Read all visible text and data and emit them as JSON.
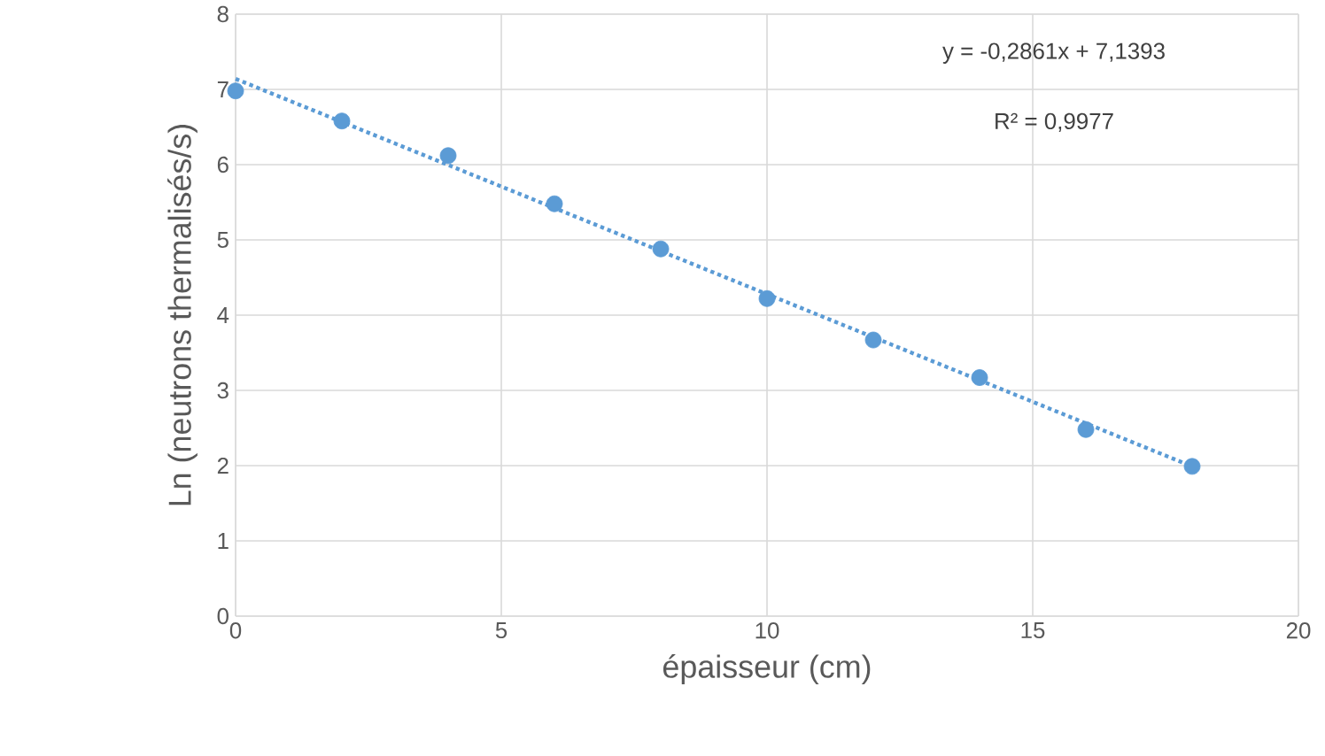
{
  "chart_data": {
    "type": "scatter",
    "xlabel": "épaisseur (cm)",
    "ylabel": "Ln (neutrons thermalisés/s)",
    "series": [
      {
        "marker": "circle",
        "color": "#5b9bd5",
        "x": [
          0,
          2,
          4,
          6,
          8,
          10,
          12,
          14,
          16,
          18
        ],
        "values": [
          6.98,
          6.58,
          6.12,
          5.48,
          4.88,
          4.22,
          3.67,
          3.17,
          2.48,
          1.99
        ]
      },
      {
        "type": "line",
        "marker": "none",
        "line_style": "dotted",
        "color": "#5b9bd5",
        "x": [
          0,
          18
        ],
        "values": [
          7.14,
          1.99
        ]
      }
    ],
    "annotations": [
      "y = -0,2861x + 7,1393",
      "R² = 0,9977"
    ],
    "xlim": [
      0,
      20
    ],
    "xticks": [
      0,
      5,
      10,
      15,
      20
    ],
    "ylim": [
      0,
      8
    ],
    "yticks": [
      0,
      1,
      2,
      3,
      4,
      5,
      6,
      7,
      8
    ],
    "grid": true
  }
}
